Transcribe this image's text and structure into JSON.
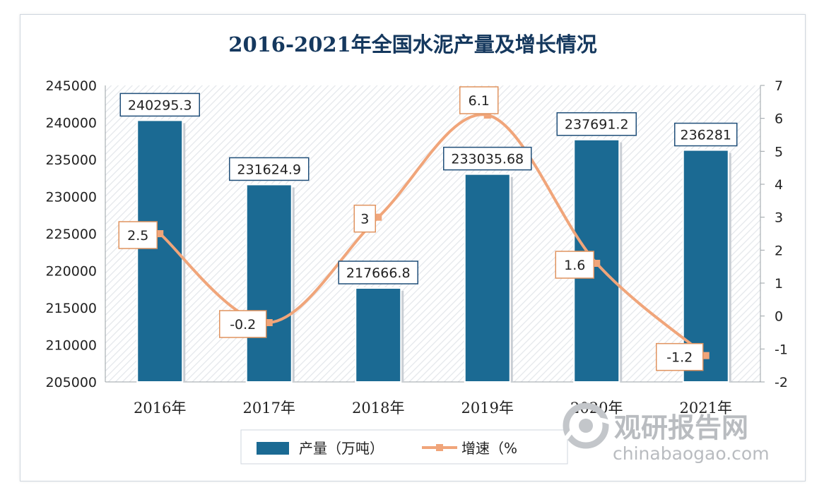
{
  "chart_data": {
    "type": "bar",
    "title": "2016-2021年全国水泥产量及增长情况",
    "categories": [
      "2016年",
      "2017年",
      "2018年",
      "2019年",
      "2020年",
      "2021年"
    ],
    "series": [
      {
        "name": "产量（万吨）",
        "type": "bar",
        "axis": "left",
        "color": "#1b6a93",
        "values": [
          240295.3,
          231624.9,
          217666.8,
          233035.68,
          237691.2,
          236281
        ],
        "labels": [
          "240295.3",
          "231624.9",
          "217666.8",
          "233035.68",
          "237691.2",
          "236281"
        ]
      },
      {
        "name": "增速（%",
        "type": "line",
        "axis": "right",
        "color": "#f0a57a",
        "values": [
          2.5,
          -0.2,
          3,
          6.1,
          1.6,
          -1.2
        ],
        "labels": [
          "2.5",
          "-0.2",
          "3",
          "6.1",
          "1.6",
          "-1.2"
        ]
      }
    ],
    "y_left": {
      "min": 205000,
      "max": 245000,
      "step": 5000,
      "ticks": [
        "205000",
        "210000",
        "215000",
        "220000",
        "225000",
        "230000",
        "235000",
        "240000",
        "245000"
      ]
    },
    "y_right": {
      "min": -2,
      "max": 7,
      "step": 1,
      "ticks": [
        "-2",
        "-1",
        "0",
        "1",
        "2",
        "3",
        "4",
        "5",
        "6",
        "7"
      ]
    },
    "legend": "bottom",
    "grid": false,
    "background": "diagonal-hatch"
  },
  "watermark": {
    "brand": "观研报告网",
    "site": "chinabaogao.com"
  }
}
